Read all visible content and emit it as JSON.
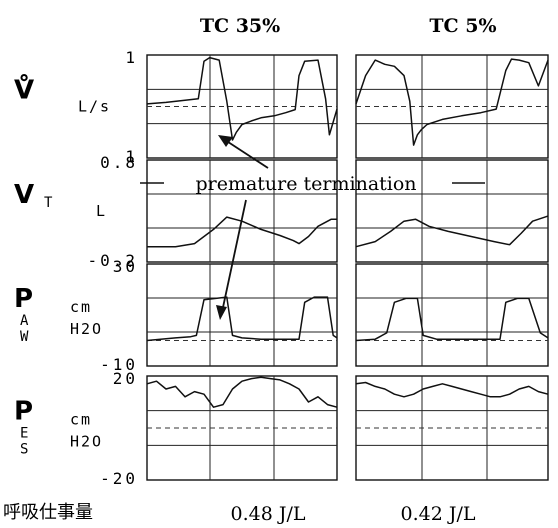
{
  "chart_data": {
    "type": "line",
    "columns": [
      "TC 35%",
      "TC 5%"
    ],
    "annotation": "premature termination",
    "footer": {
      "label": "呼吸仕事量",
      "values": [
        "0.48 J/L",
        "0.42 J/L"
      ]
    },
    "rows": [
      {
        "symbol": "V̊",
        "subscript": "",
        "unit_lines": [
          "L/s"
        ],
        "ticks": [
          "1",
          "1"
        ],
        "range": [
          -1,
          1
        ],
        "zero_line": true,
        "series": [
          {
            "name": "TC 35%",
            "x": [
              0,
              0.1,
              0.2,
              0.27,
              0.3,
              0.33,
              0.38,
              0.42,
              0.45,
              0.47,
              0.5,
              0.55,
              0.6,
              0.67,
              0.73,
              0.78,
              0.8,
              0.83,
              0.9,
              0.94,
              0.96,
              0.98,
              1
            ],
            "y": [
              0.05,
              0.08,
              0.12,
              0.15,
              0.88,
              0.95,
              0.9,
              0.1,
              -0.65,
              -0.5,
              -0.35,
              -0.28,
              -0.22,
              -0.18,
              -0.12,
              -0.06,
              0.6,
              0.88,
              0.9,
              0.15,
              -0.55,
              -0.3,
              -0.05
            ]
          },
          {
            "name": "TC 5%",
            "x": [
              0,
              0.05,
              0.1,
              0.15,
              0.2,
              0.25,
              0.28,
              0.3,
              0.32,
              0.34,
              0.37,
              0.45,
              0.55,
              0.65,
              0.73,
              0.78,
              0.81,
              0.85,
              0.9,
              0.95,
              1
            ],
            "y": [
              0.05,
              0.6,
              0.9,
              0.82,
              0.78,
              0.6,
              0.1,
              -0.75,
              -0.55,
              -0.45,
              -0.35,
              -0.25,
              -0.18,
              -0.12,
              -0.05,
              0.7,
              0.92,
              0.9,
              0.85,
              0.4,
              0.9
            ]
          }
        ]
      },
      {
        "symbol": "V",
        "subscript": "T",
        "unit_lines": [
          "L"
        ],
        "ticks": [
          "0.8",
          "-0.2"
        ],
        "range": [
          -0.2,
          0.8
        ],
        "zero_line": false,
        "series": [
          {
            "name": "TC 35%",
            "x": [
              0,
              0.15,
              0.25,
              0.3,
              0.35,
              0.42,
              0.5,
              0.6,
              0.7,
              0.77,
              0.8,
              0.85,
              0.9,
              0.97,
              1
            ],
            "y": [
              -0.05,
              -0.05,
              -0.02,
              0.05,
              0.12,
              0.24,
              0.2,
              0.12,
              0.06,
              0.01,
              -0.02,
              0.05,
              0.15,
              0.22,
              0.22
            ]
          },
          {
            "name": "TC 5%",
            "x": [
              0,
              0.1,
              0.18,
              0.25,
              0.31,
              0.38,
              0.48,
              0.6,
              0.72,
              0.8,
              0.86,
              0.92,
              1
            ],
            "y": [
              -0.05,
              0.0,
              0.1,
              0.2,
              0.22,
              0.15,
              0.1,
              0.05,
              0.0,
              -0.03,
              0.08,
              0.2,
              0.25
            ]
          }
        ]
      },
      {
        "symbol": "P",
        "subscript": "AW",
        "unit_lines": [
          "cm",
          "H2O"
        ],
        "ticks": [
          "30",
          "-10"
        ],
        "range": [
          -10,
          30
        ],
        "zero_line": true,
        "series": [
          {
            "name": "TC 35%",
            "x": [
              0,
              0.15,
              0.23,
              0.26,
              0.3,
              0.42,
              0.45,
              0.5,
              0.6,
              0.72,
              0.8,
              0.83,
              0.88,
              0.95,
              0.98,
              1
            ],
            "y": [
              0,
              1,
              1.5,
              2,
              16,
              17,
              2,
              1,
              0.5,
              0.5,
              0.5,
              15,
              17,
              17,
              2,
              1
            ]
          },
          {
            "name": "TC 5%",
            "x": [
              0,
              0.1,
              0.16,
              0.2,
              0.26,
              0.32,
              0.35,
              0.42,
              0.55,
              0.68,
              0.75,
              0.78,
              0.84,
              0.9,
              0.96,
              1
            ],
            "y": [
              0,
              0.5,
              3,
              15,
              16.5,
              16.5,
              2,
              0.5,
              0.5,
              0.5,
              0.5,
              15,
              16.5,
              16.5,
              3,
              1
            ]
          }
        ]
      },
      {
        "symbol": "P",
        "subscript": "ES",
        "unit_lines": [
          "cm",
          "H2O"
        ],
        "ticks": [
          "20",
          "-20"
        ],
        "range": [
          -20,
          20
        ],
        "zero_line": true,
        "series": [
          {
            "name": "TC 35%",
            "x": [
              0,
              0.05,
              0.1,
              0.15,
              0.2,
              0.25,
              0.3,
              0.35,
              0.4,
              0.45,
              0.5,
              0.55,
              0.6,
              0.65,
              0.7,
              0.75,
              0.8,
              0.85,
              0.9,
              0.95,
              1
            ],
            "y": [
              17,
              18,
              15,
              16,
              12,
              14,
              13,
              8,
              9,
              15,
              18,
              19,
              19.5,
              19,
              18.5,
              17,
              15,
              10,
              12,
              9,
              8
            ]
          },
          {
            "name": "TC 5%",
            "x": [
              0,
              0.05,
              0.1,
              0.15,
              0.2,
              0.25,
              0.3,
              0.35,
              0.4,
              0.45,
              0.5,
              0.55,
              0.6,
              0.65,
              0.7,
              0.75,
              0.8,
              0.85,
              0.9,
              0.95,
              1
            ],
            "y": [
              17,
              17.5,
              16,
              15,
              13,
              12,
              13,
              15,
              16,
              17,
              16,
              15,
              14,
              13,
              12,
              12,
              13,
              15,
              16,
              14,
              13
            ]
          }
        ]
      }
    ]
  }
}
